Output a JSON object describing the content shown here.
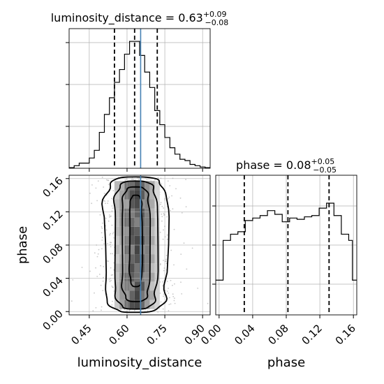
{
  "chart_data": [
    {
      "type": "histogram",
      "panel": "luminosity_distance-marginal",
      "title_param": "luminosity_distance",
      "title_value": "0.63",
      "title_plus": "+0.09",
      "title_minus": "−0.08",
      "x_range": [
        0.37,
        0.93
      ],
      "bin_edges": [
        0.37,
        0.39,
        0.41,
        0.43,
        0.45,
        0.47,
        0.49,
        0.51,
        0.53,
        0.55,
        0.57,
        0.59,
        0.61,
        0.63,
        0.65,
        0.67,
        0.69,
        0.71,
        0.73,
        0.75,
        0.77,
        0.79,
        0.81,
        0.83,
        0.85,
        0.87,
        0.89,
        0.91,
        0.93
      ],
      "counts": [
        0.5,
        2,
        4,
        4,
        8,
        14,
        28,
        42,
        55,
        67,
        77,
        89,
        99,
        99,
        88,
        75,
        63,
        45,
        34,
        24,
        16,
        11,
        7,
        6,
        3,
        2,
        1,
        0.5
      ],
      "quantiles": [
        0.55,
        0.63,
        0.72
      ],
      "truth": 0.654
    },
    {
      "type": "histogram",
      "panel": "phase-marginal",
      "title_param": "phase",
      "title_value": "0.08",
      "title_plus": "+0.05",
      "title_minus": "−0.05",
      "x_range": [
        -0.004,
        0.164
      ],
      "x_ticks": [
        "0.00",
        "0.04",
        "0.08",
        "0.12",
        "0.16"
      ],
      "xlabel": "phase",
      "bin_edges": [
        -0.004,
        0.0004,
        0.0048,
        0.0092,
        0.0136,
        0.018,
        0.0224,
        0.0268,
        0.0312,
        0.0356,
        0.04,
        0.0444,
        0.0488,
        0.0532,
        0.0576,
        0.062,
        0.0664,
        0.0708,
        0.0752,
        0.0796,
        0.084,
        0.0884,
        0.0928,
        0.0972,
        0.1016,
        0.106,
        0.1104,
        0.1148,
        0.1192,
        0.1236,
        0.128,
        0.1324,
        0.1368,
        0.1412,
        0.1456,
        0.15,
        0.1544,
        0.1588,
        0.164
      ],
      "counts": [
        28,
        28,
        60,
        60,
        65,
        65,
        67,
        67,
        76,
        76,
        78,
        78,
        80,
        80,
        84,
        84,
        81,
        81,
        75,
        75,
        78,
        78,
        77,
        77,
        79,
        79,
        80,
        80,
        86,
        86,
        90,
        90,
        80,
        80,
        65,
        65,
        60,
        28
      ],
      "quantiles": [
        0.03,
        0.082,
        0.131
      ]
    },
    {
      "type": "contour",
      "panel": "joint-density",
      "x_range": [
        0.37,
        0.93
      ],
      "y_range": [
        -0.004,
        0.164
      ],
      "x_ticks": [
        "0.45",
        "0.60",
        "0.75",
        "0.90"
      ],
      "y_ticks": [
        "0.00",
        "0.04",
        "0.08",
        "0.12",
        "0.16"
      ],
      "xlabel": "luminosity_distance",
      "ylabel": "phase",
      "truth_x": 0.654,
      "levels": [
        {
          "x_half_width": 0.125,
          "y_min": -0.001,
          "y_max": 0.162
        },
        {
          "x_half_width": 0.085,
          "y_min": 0.003,
          "y_max": 0.157
        },
        {
          "x_half_width": 0.055,
          "y_min": 0.012,
          "y_max": 0.15
        },
        {
          "x_half_width": 0.025,
          "y_min": 0.03,
          "y_max": 0.14
        }
      ],
      "density_columns": [
        {
          "x": [
            0.55,
            0.57
          ],
          "shade": 0.3
        },
        {
          "x": [
            0.57,
            0.59
          ],
          "shade": 0.45
        },
        {
          "x": [
            0.59,
            0.61
          ],
          "shade": 0.62
        },
        {
          "x": [
            0.61,
            0.63
          ],
          "shade": 0.75
        },
        {
          "x": [
            0.63,
            0.65
          ],
          "shade": 0.8
        },
        {
          "x": [
            0.65,
            0.67
          ],
          "shade": 0.72
        },
        {
          "x": [
            0.67,
            0.69
          ],
          "shade": 0.55
        },
        {
          "x": [
            0.69,
            0.71
          ],
          "shade": 0.38
        },
        {
          "x": [
            0.71,
            0.73
          ],
          "shade": 0.22
        }
      ]
    }
  ]
}
